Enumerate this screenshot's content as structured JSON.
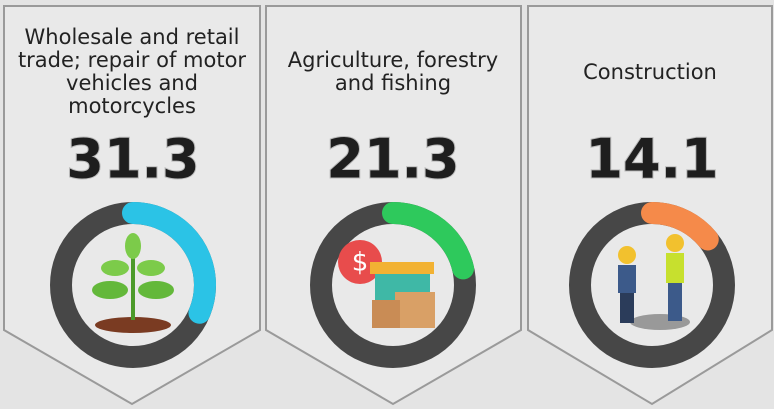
{
  "chart_data": [
    {
      "type": "gauge",
      "title": "Wholesale and retail trade; repair of motor vehicles and motorcycles",
      "value": 31.3,
      "ylim": [
        0,
        100
      ],
      "color": "#2bc3e6"
    },
    {
      "type": "gauge",
      "title": "Agriculture, forestry and fishing",
      "value": 21.3,
      "ylim": [
        0,
        100
      ],
      "color": "#2ec95c"
    },
    {
      "type": "gauge",
      "title": "Construction",
      "value": 14.1,
      "ylim": [
        0,
        100
      ],
      "color": "#f58a4a"
    }
  ]
}
